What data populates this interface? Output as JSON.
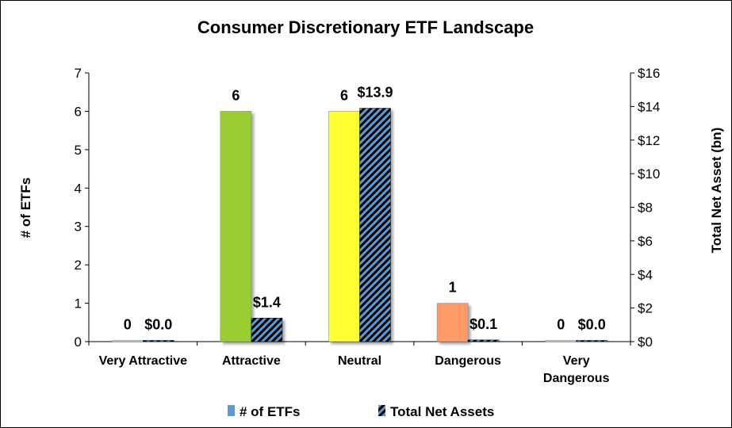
{
  "chart_data": {
    "type": "bar",
    "title": "Consumer Discretionary ETF Landscape",
    "categories": [
      {
        "lines": [
          "Very Attractive"
        ]
      },
      {
        "lines": [
          "Attractive"
        ]
      },
      {
        "lines": [
          "Neutral"
        ]
      },
      {
        "lines": [
          "Dangerous"
        ]
      },
      {
        "lines": [
          "Very",
          "Dangerous"
        ]
      }
    ],
    "series": [
      {
        "name": "# of ETFs",
        "axis": "left",
        "values": [
          0,
          6,
          6,
          1,
          0
        ],
        "labels": [
          "0",
          "6",
          "6",
          "1",
          "0"
        ],
        "colors": [
          "#D9D9D9",
          "#9ACD32",
          "#FFFF33",
          "#FF9966",
          "#D9D9D9"
        ]
      },
      {
        "name": "Total Net Assets",
        "axis": "right",
        "values": [
          0.0,
          1.4,
          13.9,
          0.1,
          0.0
        ],
        "labels": [
          "$0.0",
          "$1.4",
          "$13.9",
          "$0.1",
          "$0.0"
        ],
        "colors": [
          "#5B9BD5",
          "#5B9BD5",
          "#5B9BD5",
          "#5B9BD5",
          "#5B9BD5"
        ],
        "pattern": "diagonal-stripes-black"
      }
    ],
    "ylabel": "# of ETFs",
    "ylim": [
      0,
      7
    ],
    "yticks": [
      "0",
      "1",
      "2",
      "3",
      "4",
      "5",
      "6",
      "7"
    ],
    "y2label": "Total Net Asset (bn)",
    "y2lim": [
      0,
      16
    ],
    "y2ticks": [
      "$0",
      "$2",
      "$4",
      "$6",
      "$8",
      "$10",
      "$12",
      "$14",
      "$16"
    ],
    "legend_position": "bottom",
    "grid": false
  },
  "legend": {
    "items": [
      {
        "label": "# of ETFs",
        "color": "#5B9BD5",
        "pattern": "solid"
      },
      {
        "label": "Total Net Assets",
        "color": "#5B9BD5",
        "pattern": "diagonal-stripes-black"
      }
    ]
  }
}
